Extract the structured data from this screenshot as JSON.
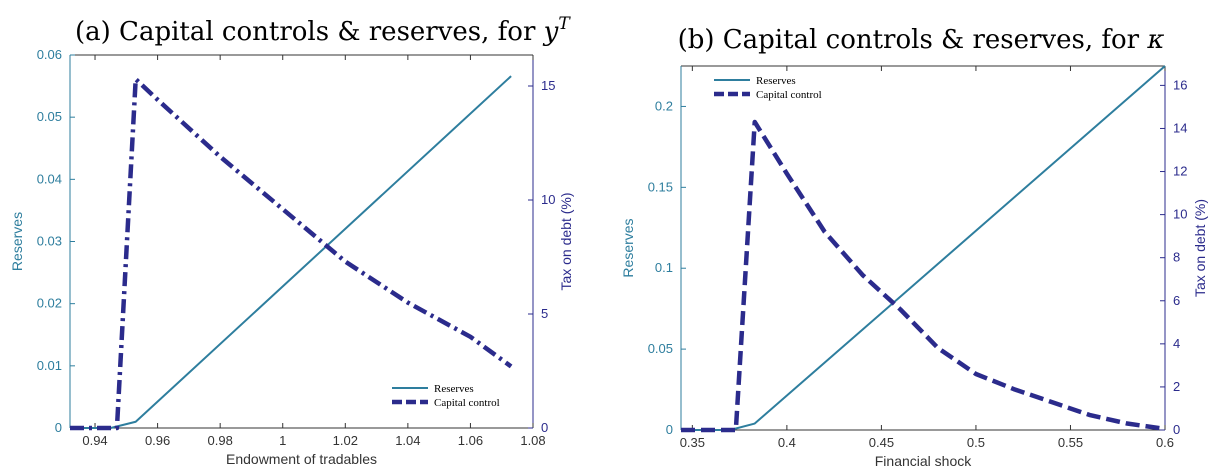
{
  "colors": {
    "reserves": "#2E7E9E",
    "capital_control": "#2B2B8C",
    "left_axis": "#2E7E9E",
    "right_axis": "#2B2B8C",
    "x_axis": "#333333"
  },
  "chart_data": [
    {
      "type": "line",
      "title_main": "(a) Capital controls & reserves, for ",
      "title_sym": "y",
      "title_sup": "T",
      "xlabel": "Endowment of tradables",
      "ylabel_left": "Reserves",
      "ylabel_right": "Tax on debt (%)",
      "xlim": [
        0.932,
        1.08
      ],
      "ylim_left": [
        0,
        0.06
      ],
      "ylim_right": [
        0,
        16.36
      ],
      "x_ticks": [
        0.94,
        0.96,
        0.98,
        1,
        1.02,
        1.04,
        1.06,
        1.08
      ],
      "x_tick_labels": [
        "0.94",
        "0.96",
        "0.98",
        "1",
        "1.02",
        "1.04",
        "1.06",
        "1.08"
      ],
      "y_left_ticks": [
        0,
        0.01,
        0.02,
        0.03,
        0.04,
        0.05,
        0.06
      ],
      "y_left_tick_labels": [
        "0",
        "0.01",
        "0.02",
        "0.03",
        "0.04",
        "0.05",
        "0.06"
      ],
      "y_right_ticks": [
        0,
        5,
        10,
        15
      ],
      "y_right_tick_labels": [
        "0",
        "5",
        "10",
        "15"
      ],
      "legend_location": "bottom-right",
      "series": [
        {
          "name": "Reserves",
          "axis": "left",
          "style": "solid",
          "x": [
            0.932,
            0.945,
            0.953,
            1.073
          ],
          "y": [
            0,
            0,
            0.001,
            0.0566
          ]
        },
        {
          "name": "Capital control",
          "axis": "right",
          "style": "dashdot",
          "x": [
            0.932,
            0.947,
            0.953,
            0.96,
            0.98,
            1.0,
            1.02,
            1.04,
            1.06,
            1.073
          ],
          "y": [
            0,
            0,
            15.3,
            14.4,
            11.9,
            9.6,
            7.3,
            5.5,
            4.0,
            2.7
          ]
        }
      ]
    },
    {
      "type": "line",
      "title_main": "(b) Capital controls & reserves, for ",
      "title_sym": "κ",
      "title_sup": "",
      "xlabel": "Financial shock",
      "ylabel_left": "Reserves",
      "ylabel_right": "Tax on debt (%)",
      "xlim": [
        0.344,
        0.6
      ],
      "ylim_left": [
        0,
        0.225
      ],
      "ylim_right": [
        0,
        16.9
      ],
      "x_ticks": [
        0.35,
        0.4,
        0.45,
        0.5,
        0.55,
        0.6
      ],
      "x_tick_labels": [
        "0.35",
        "0.4",
        "0.45",
        "0.5",
        "0.55",
        "0.6"
      ],
      "y_left_ticks": [
        0,
        0.05,
        0.1,
        0.15,
        0.2
      ],
      "y_left_tick_labels": [
        "0",
        "0.05",
        "0.1",
        "0.15",
        "0.2"
      ],
      "y_right_ticks": [
        0,
        2,
        4,
        6,
        8,
        10,
        12,
        14,
        16
      ],
      "y_right_tick_labels": [
        "0",
        "2",
        "4",
        "6",
        "8",
        "10",
        "12",
        "14",
        "16"
      ],
      "legend_location": "top-left",
      "series": [
        {
          "name": "Reserves",
          "axis": "left",
          "style": "solid",
          "x": [
            0.344,
            0.37,
            0.383,
            0.6
          ],
          "y": [
            0,
            0,
            0.004,
            0.225
          ]
        },
        {
          "name": "Capital control",
          "axis": "right",
          "style": "dashed",
          "x": [
            0.344,
            0.373,
            0.383,
            0.4,
            0.42,
            0.44,
            0.46,
            0.48,
            0.5,
            0.52,
            0.54,
            0.56,
            0.58,
            0.6
          ],
          "y": [
            0,
            0,
            14.3,
            11.9,
            9.2,
            7.2,
            5.6,
            3.8,
            2.6,
            1.9,
            1.3,
            0.7,
            0.3,
            0.05
          ]
        }
      ]
    }
  ]
}
